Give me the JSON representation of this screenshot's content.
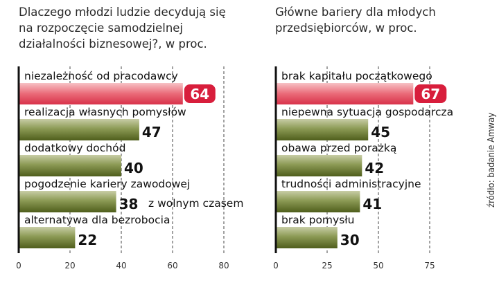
{
  "chart_data": [
    {
      "type": "bar",
      "orientation": "horizontal",
      "title": "Dlaczego młodzi ludzie decydują się na rozpoczęcie samodzielnej działalności biznesowej?, w proc.",
      "categories": [
        "niezależność od pracodawcy",
        "realizacja własnych pomysłów",
        "dodatkowy dochód",
        "pogodzenie kariery zawodowej",
        "alternatywa dla bezrobocia"
      ],
      "category_extra": [
        "",
        "",
        "",
        "z wolnym czasem",
        ""
      ],
      "values": [
        64,
        47,
        40,
        38,
        22
      ],
      "highlight_index": 0,
      "xlim": [
        0,
        80
      ],
      "ticks": [
        0,
        20,
        40,
        60,
        80
      ]
    },
    {
      "type": "bar",
      "orientation": "horizontal",
      "title": "Główne bariery dla młodych przedsiębiorców, w proc.",
      "categories": [
        "brak kapitału początkowego",
        "niepewna sytuacja gospodarcza",
        "obawa przed porażką",
        "trudności administracyjne",
        "brak pomysłu"
      ],
      "category_extra": [
        "",
        "",
        "",
        "",
        ""
      ],
      "values": [
        67,
        45,
        42,
        41,
        30
      ],
      "highlight_index": 0,
      "xlim": [
        0,
        75
      ],
      "ticks": [
        0,
        25,
        50,
        75
      ]
    }
  ],
  "titles": {
    "left_line1": "Dlaczego młodzi ludzie decydują się",
    "left_line2": "na rozpoczęcie samodzielnej",
    "left_line3": "działalności biznesowej?, w proc.",
    "right_line1": "Główne bariery dla młodych",
    "right_line2": "przedsiębiorców, w proc."
  },
  "source": "źródło: badanie Amway",
  "colors": {
    "highlight_bar": "#e2445a",
    "highlight_badge": "#d81e3c",
    "bar_dark": "#5a6a24",
    "bar_light": "#c8cda6",
    "axis": "#111111",
    "grid": "#555555"
  }
}
